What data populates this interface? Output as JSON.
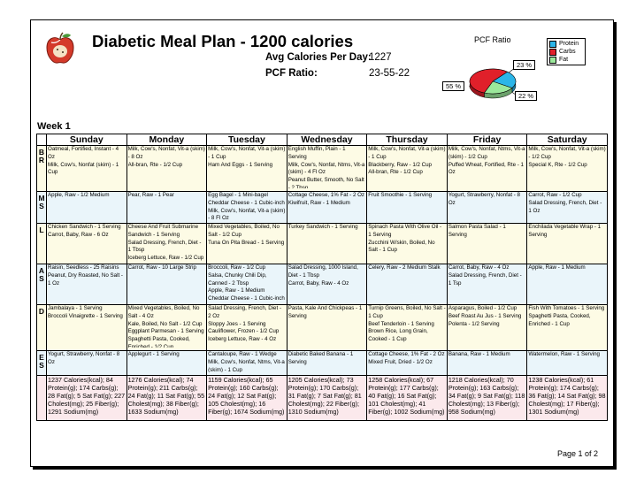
{
  "header": {
    "title": "Diabetic Meal Plan - 1200 calories",
    "avg_label": "Avg Calories Per Day:",
    "avg_value": "1227",
    "pcf_label": "PCF Ratio:",
    "pcf_value": "23-55-22"
  },
  "pcf_chart": {
    "title": "PCF Ratio",
    "slices": [
      {
        "name": "Protein",
        "label": "23 %",
        "value": 23,
        "color": "#2bb5e8"
      },
      {
        "name": "Carbs",
        "label": "55 %",
        "value": 55,
        "color": "#e0202a"
      },
      {
        "name": "Fat",
        "label": "22 %",
        "value": 22,
        "color": "#9be89b"
      }
    ]
  },
  "week_label": "Week 1",
  "days": [
    "Sunday",
    "Monday",
    "Tuesday",
    "Wednesday",
    "Thursday",
    "Friday",
    "Saturday"
  ],
  "meals": [
    {
      "code": "B R",
      "cells": [
        [
          "Oatmeal, Fortified, Instant - 4 Oz",
          "Milk, Cow's, Nonfat (skim) - 1 Cup"
        ],
        [
          "Milk, Cow's, Nonfat, Vit-a (skim) - 8 Oz",
          "All-bran, Rte - 1/2 Cup"
        ],
        [
          "Milk, Cow's, Nonfat, Vit-a (skim) - 1 Cup",
          "Ham And Eggs - 1 Serving"
        ],
        [
          "English Muffin, Plain - 1 Serving",
          "Milk, Cow's, Nonfat, Ntms, Vit-a (skim) - 4 Fl Oz",
          "Peanut Butter, Smooth, No Salt - 2 Tbsp"
        ],
        [
          "Milk, Cow's, Nonfat, Vit-a (skim) - 1 Cup",
          "Blackberry, Raw - 1/2 Cup",
          "All-bran, Rte - 1/2 Cup"
        ],
        [
          "Milk, Cow's, Nonfat, Ntms, Vit-a (skim) - 1/2 Cup",
          "Puffed Wheat, Fortified, Rte - 1 Oz"
        ],
        [
          "Milk, Cow's, Nonfat, Vit-a (skim) - 1/2 Cup",
          "Special K, Rte - 1/2 Cup"
        ]
      ]
    },
    {
      "code": "M S",
      "cells": [
        [
          "Apple, Raw - 1/2 Medium"
        ],
        [
          "Pear, Raw - 1 Pear"
        ],
        [
          "Egg Bagel - 1 Mini-bagel",
          "Cheddar Cheese - 1 Cubic-inch",
          "Milk, Cow's, Nonfat, Vit-a (skim) - 8 Fl Oz"
        ],
        [
          "Cottage Cheese, 1% Fat - 2 Oz",
          "Kiwifruit, Raw - 1 Medium"
        ],
        [
          "Fruit Smoothie - 1 Serving"
        ],
        [
          "Yogurt, Strawberry, Nonfat - 8 Oz"
        ],
        [
          "Carrot, Raw - 1/2 Cup",
          "Salad Dressing, French, Diet - 1 Oz"
        ]
      ]
    },
    {
      "code": "L",
      "cells": [
        [
          "Chicken Sandwich - 1 Serving",
          "Carrot, Baby, Raw - 6 Oz"
        ],
        [
          "Cheese And Fruit Submarine Sandwich - 1 Serving",
          "Salad Dressing, French, Diet - 1 Tbsp",
          "Iceberg Lettuce, Raw - 1/2 Cup"
        ],
        [
          "Mixed Vegetables, Boiled, No Salt - 1/2 Cup",
          "Tuna On Pita Bread - 1 Serving"
        ],
        [
          "Turkey Sandwich - 1 Serving"
        ],
        [
          "Spinach Pasta With Olive Oil - 1 Serving",
          "Zucchini W/skin, Boiled, No Salt - 1 Cup"
        ],
        [
          "Salmon Pasta Salad - 1 Serving"
        ],
        [
          "Enchilada Vegetable Wrap - 1 Serving"
        ]
      ]
    },
    {
      "code": "A S",
      "cells": [
        [
          "Raisin, Seedless - 25 Raisins",
          "Peanut, Dry Roasted, No Salt - 1 Oz"
        ],
        [
          "Carrot, Raw - 10 Large Strip"
        ],
        [
          "Broccoli, Raw - 1/2 Cup",
          "Salsa, Chunky Chili Dip, Canned - 2 Tbsp",
          "Apple, Raw - 1 Medium",
          "Cheddar Cheese - 1 Cubic-inch"
        ],
        [
          "Salad Dressing, 1000 Island, Diet - 1 Tbsp",
          "Carrot, Baby, Raw - 4 Oz"
        ],
        [
          "Celery, Raw - 2 Medium Stalk"
        ],
        [
          "Carrot, Baby, Raw - 4 Oz",
          "Salad Dressing, French, Diet - 1 Tsp"
        ],
        [
          "Apple, Raw - 1 Medium"
        ]
      ]
    },
    {
      "code": "D",
      "cells": [
        [
          "Jambalaya - 1 Serving",
          "Broccoli Vinaigrette - 1 Serving"
        ],
        [
          "Mixed Vegetables, Boiled, No Salt - 4 Oz",
          "Kale, Boiled, No Salt - 1/2 Cup",
          "Eggplant Parmesan - 1 Serving",
          "Spaghetti Pasta, Cooked, Enriched - 1/2 Cup"
        ],
        [
          "Salad Dressing, French, Diet - 2 Oz",
          "Sloppy Joes - 1 Serving",
          "Cauliflower, Frozen - 1/2 Cup",
          "Iceberg Lettuce, Raw - 4 Oz"
        ],
        [
          "Pasta, Kale And Chickpeas - 1 Serving"
        ],
        [
          "Turnip Greens, Boiled, No Salt - 1 Cup",
          "Beef Tenderloin - 1 Serving",
          "Brown Rice, Long Grain, Cooked - 1 Cup"
        ],
        [
          "Asparagus, Boiled - 1/2 Cup",
          "Beef Roast Au Jus - 1 Serving",
          "Polenta - 1/2 Serving"
        ],
        [
          "Fish With Tomatoes - 1 Serving",
          "Spaghetti Pasta, Cooked, Enriched - 1 Cup"
        ]
      ]
    },
    {
      "code": "E S",
      "cells": [
        [
          "Yogurt, Strawberry, Nonfat - 8 Oz"
        ],
        [
          "Applegurt - 1 Serving"
        ],
        [
          "Cantaloupe, Raw - 1 Wedge",
          "Milk, Cow's, Nonfat, Ntms, Vit-a (skim) - 1 Cup"
        ],
        [
          "Diabetic Baked Banana - 1 Serving"
        ],
        [
          "Cottage Cheese, 1% Fat - 2 Oz",
          "Mixed Fruit, Dried - 1/2 Oz"
        ],
        [
          "Banana, Raw - 1 Medium"
        ],
        [
          "Watermelon, Raw - 1 Serving"
        ]
      ]
    }
  ],
  "totals": [
    "1237 Calories(kcal); 84 Protein(g); 174 Carbs(g); 28 Fat(g); 5 Sat Fat(g); 227 Cholest(mg); 25 Fiber(g); 1291 Sodium(mg)",
    "1276 Calories(kcal); 74 Protein(g); 211 Carbs(g); 24 Fat(g); 11 Sat Fat(g); 55 Cholest(mg); 38 Fiber(g); 1633 Sodium(mg)",
    "1159 Calories(kcal); 65 Protein(g); 160 Carbs(g); 24 Fat(g); 12 Sat Fat(g); 105 Cholest(mg); 16 Fiber(g); 1674 Sodium(mg)",
    "1205 Calories(kcal); 73 Protein(g); 170 Carbs(g); 31 Fat(g); 7 Sat Fat(g); 81 Cholest(mg); 22 Fiber(g); 1310 Sodium(mg)",
    "1258 Calories(kcal); 67 Protein(g); 177 Carbs(g); 40 Fat(g); 16 Sat Fat(g); 101 Cholest(mg); 41 Fiber(g); 1002 Sodium(mg)",
    "1218 Calories(kcal); 70 Protein(g); 163 Carbs(g); 34 Fat(g); 9 Sat Fat(g); 118 Cholest(mg); 13 Fiber(g); 958 Sodium(mg)",
    "1238 Calories(kcal); 61 Protein(g); 174 Carbs(g); 36 Fat(g); 14 Sat Fat(g); 98 Cholest(mg); 17 Fiber(g); 1301 Sodium(mg)"
  ],
  "footer": {
    "page": "Page 1 of 2"
  }
}
